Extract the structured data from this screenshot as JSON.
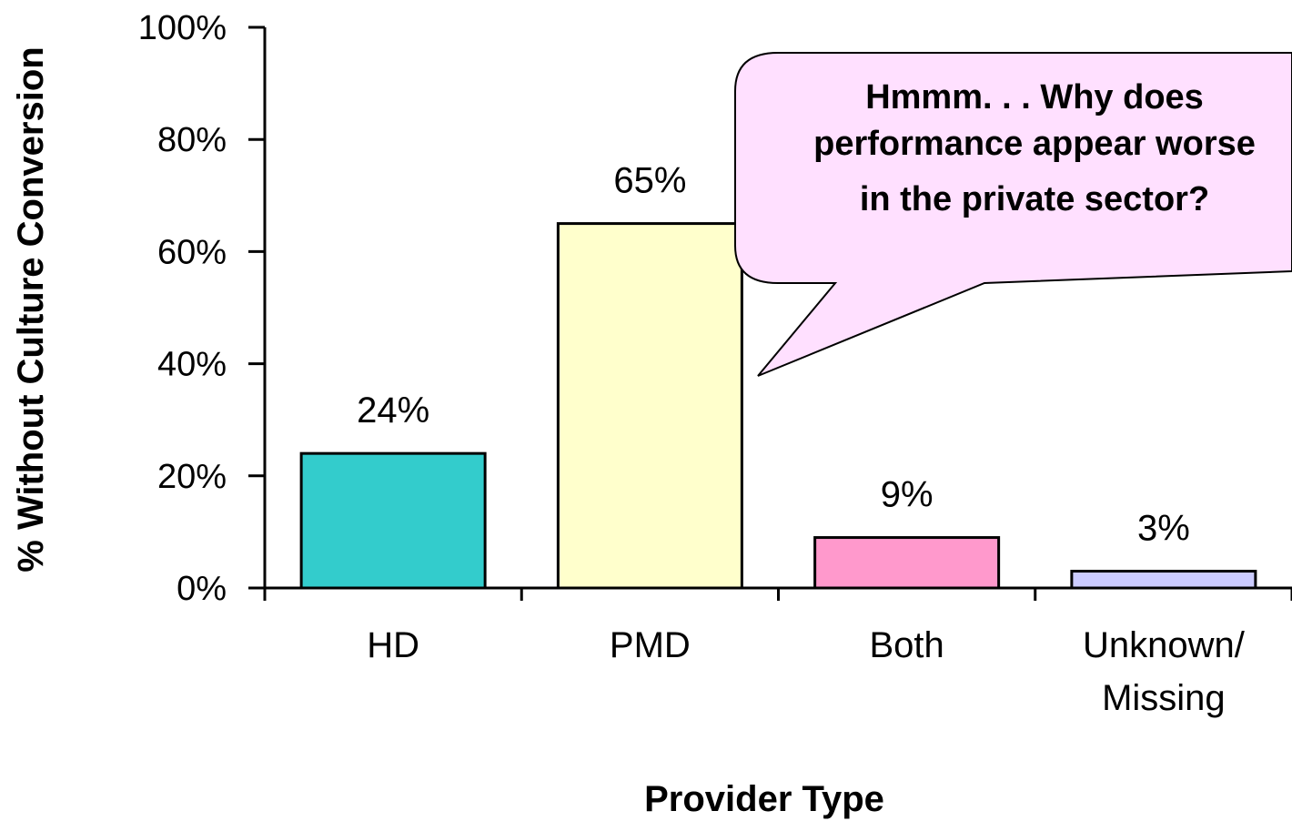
{
  "chart_data": {
    "type": "bar",
    "categories": [
      "HD",
      "PMD",
      "Both",
      "Unknown/\nMissing"
    ],
    "values": [
      24,
      65,
      9,
      3
    ],
    "data_labels": [
      "24%",
      "65%",
      "9%",
      "3%"
    ],
    "colors": [
      "#33cccc",
      "#ffffcc",
      "#ff99cc",
      "#ccccff"
    ],
    "xlabel": "Provider Type",
    "ylabel": "%  Without Culture Conversion",
    "ylim": [
      0,
      100
    ],
    "yticks": [
      0,
      20,
      40,
      60,
      80,
      100
    ],
    "ytick_labels": [
      "0%",
      "20%",
      "40%",
      "60%",
      "80%",
      "100%"
    ],
    "grid": false,
    "legend": "none"
  },
  "annotation": {
    "lines": [
      "Hmmm. . . Why does",
      "performance appear worse",
      "in the private sector?"
    ],
    "fill": "#ffe0ff"
  }
}
